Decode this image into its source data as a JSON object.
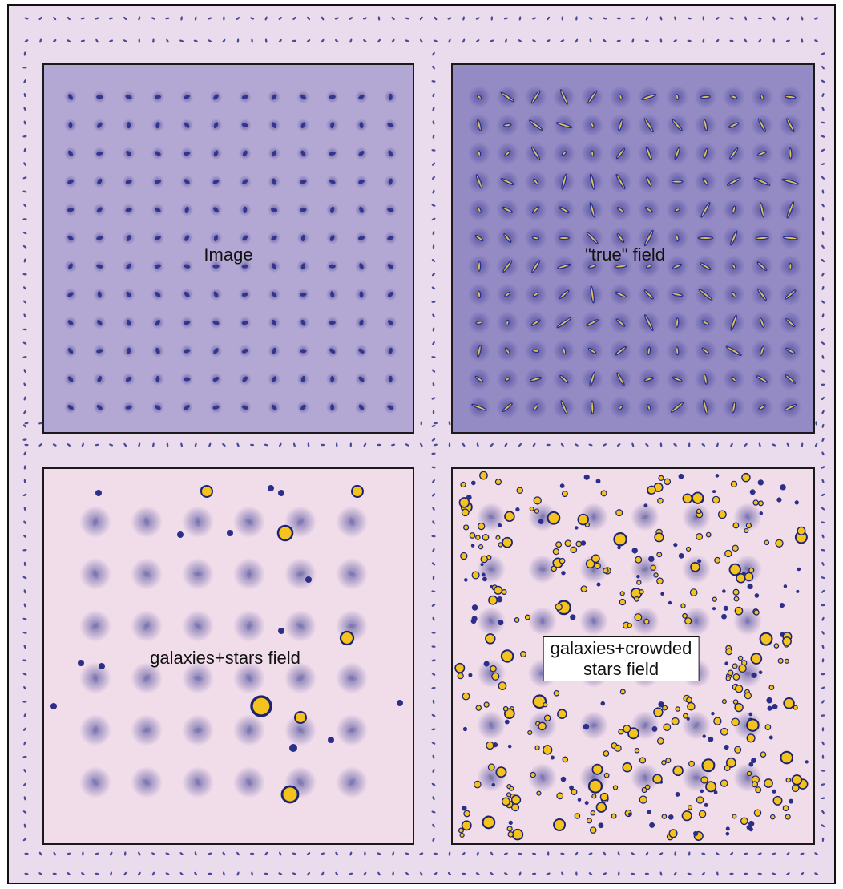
{
  "panels": {
    "image": {
      "label": "Image"
    },
    "true_field": {
      "label": "\"true\" field"
    },
    "galaxies_stars": {
      "label": "galaxies+stars field"
    },
    "galaxies_crowded": {
      "label_line1": "galaxies+crowded",
      "label_line2": "stars field"
    }
  },
  "colors": {
    "background": "#eadced",
    "panel_image": "#b3a7d3",
    "panel_true": "#948ac4",
    "panel_light": "#f1dcea",
    "galaxy": "#2c2f8a",
    "star": "#f6c21d"
  }
}
